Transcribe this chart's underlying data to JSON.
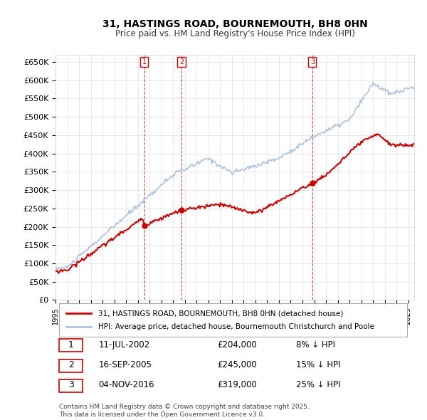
{
  "title": "31, HASTINGS ROAD, BOURNEMOUTH, BH8 0HN",
  "subtitle": "Price paid vs. HM Land Registry's House Price Index (HPI)",
  "ylabel": "",
  "ylim": [
    0,
    670000
  ],
  "yticks": [
    0,
    50000,
    100000,
    150000,
    200000,
    250000,
    300000,
    350000,
    400000,
    450000,
    500000,
    550000,
    600000,
    650000
  ],
  "ytick_labels": [
    "£0",
    "£50K",
    "£100K",
    "£150K",
    "£200K",
    "£250K",
    "£300K",
    "£350K",
    "£400K",
    "£450K",
    "£500K",
    "£550K",
    "£600K",
    "£650K"
  ],
  "legend_line1": "31, HASTINGS ROAD, BOURNEMOUTH, BH8 0HN (detached house)",
  "legend_line2": "HPI: Average price, detached house, Bournemouth Christchurch and Poole",
  "line_color_house": "#cc0000",
  "line_color_hpi": "#aac4dd",
  "annotation_color": "#cc0000",
  "annotations": [
    {
      "label": "1",
      "year": 2002.54,
      "price": 204000
    },
    {
      "label": "2",
      "year": 2005.71,
      "price": 245000
    },
    {
      "label": "3",
      "year": 2016.84,
      "price": 319000
    }
  ],
  "table_entries": [
    {
      "num": "1",
      "date": "11-JUL-2002",
      "price": "£204,000",
      "pct": "8% ↓ HPI"
    },
    {
      "num": "2",
      "date": "16-SEP-2005",
      "price": "£245,000",
      "pct": "15% ↓ HPI"
    },
    {
      "num": "3",
      "date": "04-NOV-2016",
      "price": "£319,000",
      "pct": "25% ↓ HPI"
    }
  ],
  "footer": "Contains HM Land Registry data © Crown copyright and database right 2025.\nThis data is licensed under the Open Government Licence v3.0.",
  "background_color": "#ffffff",
  "plot_bg_color": "#ffffff",
  "grid_color": "#dddddd",
  "x_start_year": 1995,
  "x_end_year": 2025
}
